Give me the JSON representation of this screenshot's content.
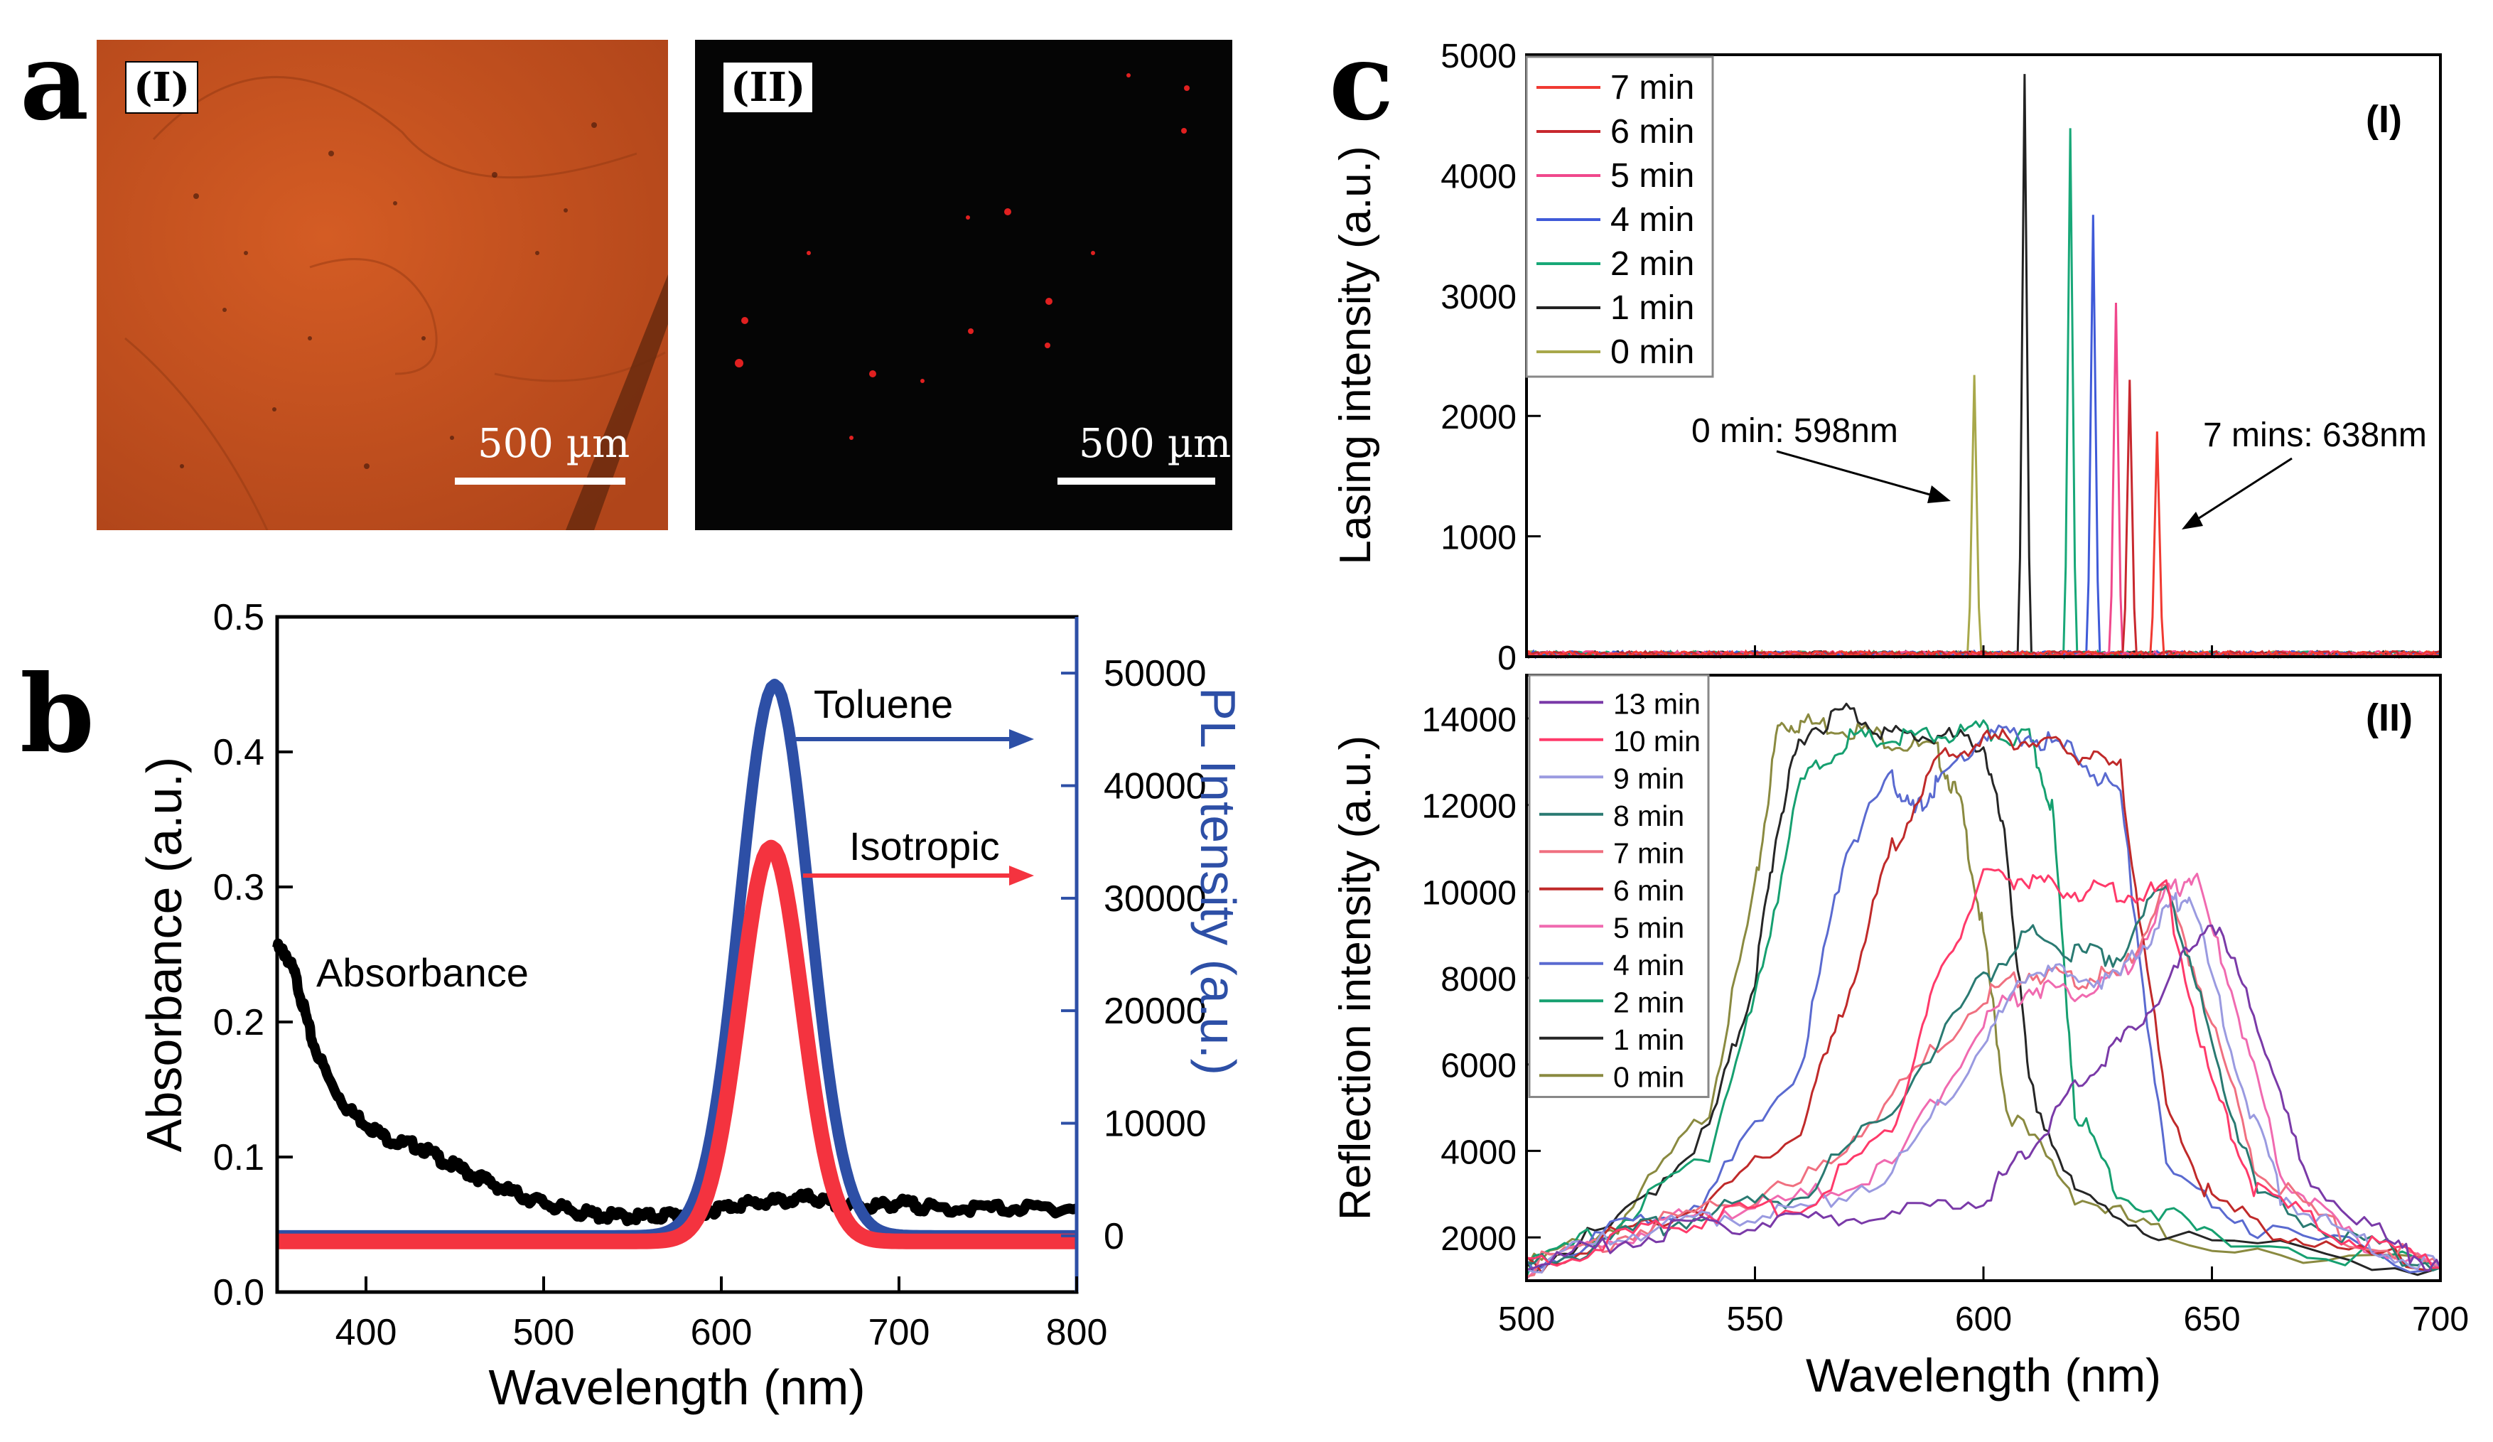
{
  "panels": {
    "a": {
      "letter": "a",
      "images": [
        {
          "label": "(I)",
          "scale_bar_text": "500 µm",
          "bg": "#c6501c"
        },
        {
          "label": "(II)",
          "scale_bar_text": "500 µm",
          "bg": "#050505"
        }
      ]
    },
    "b": {
      "letter": "b"
    },
    "c": {
      "letter": "c"
    }
  },
  "chart_data": [
    {
      "id": "b",
      "type": "line",
      "title": "",
      "xlabel": "Wavelength (nm)",
      "ylabel_left": "Absorbance (a.u.)",
      "ylabel_right": "PL Intensity (a.u.)",
      "xlim": [
        350,
        800
      ],
      "ylim_left": [
        0.0,
        0.5
      ],
      "ylim_right": [
        -5000,
        55000
      ],
      "x_ticks": [
        "400",
        "500",
        "600",
        "700",
        "800"
      ],
      "y_left_ticks": [
        "0.0",
        "0.1",
        "0.2",
        "0.3",
        "0.4",
        "0.5"
      ],
      "y_right_ticks": [
        "0",
        "10000",
        "20000",
        "30000",
        "40000",
        "50000"
      ],
      "series": [
        {
          "name": "Absorbance",
          "axis": "left",
          "color": "#000000",
          "x": [
            350,
            355,
            360,
            365,
            370,
            380,
            390,
            400,
            410,
            420,
            430,
            440,
            450,
            460,
            470,
            480,
            490,
            500,
            510,
            520,
            530,
            540,
            550,
            560,
            570,
            580,
            590,
            600,
            610,
            620,
            630,
            640,
            650,
            660,
            670,
            680,
            690,
            700,
            710,
            720,
            740,
            760,
            780,
            800
          ],
          "y": [
            0.255,
            0.25,
            0.235,
            0.21,
            0.185,
            0.155,
            0.135,
            0.125,
            0.115,
            0.11,
            0.108,
            0.1,
            0.093,
            0.087,
            0.081,
            0.075,
            0.07,
            0.066,
            0.062,
            0.059,
            0.057,
            0.056,
            0.056,
            0.056,
            0.057,
            0.058,
            0.06,
            0.062,
            0.065,
            0.066,
            0.067,
            0.068,
            0.07,
            0.066,
            0.064,
            0.063,
            0.064,
            0.066,
            0.064,
            0.062,
            0.062,
            0.062,
            0.062,
            0.062
          ]
        },
        {
          "name": "Toluene",
          "axis": "right",
          "color": "#2d4fa6",
          "peak_x": 630,
          "peak_y": 49000,
          "width": 19.5,
          "baseline": 0,
          "x": [
            350,
            400,
            450,
            500,
            550,
            570,
            580,
            590,
            600,
            605,
            610,
            615,
            620,
            625,
            630,
            635,
            640,
            645,
            650,
            655,
            660,
            665,
            670,
            680,
            690,
            700,
            750,
            800
          ],
          "y": [
            0,
            0,
            0,
            0,
            0,
            100,
            600,
            2500,
            8000,
            13000,
            20000,
            28000,
            36500,
            44000,
            49000,
            47500,
            42000,
            34000,
            25000,
            17000,
            10000,
            5500,
            2700,
            500,
            60,
            0,
            0,
            0
          ]
        },
        {
          "name": "Isotropic",
          "axis": "right",
          "color": "#f4333f",
          "peak_x": 628,
          "peak_y": 34500,
          "width": 17.5,
          "baseline": -500,
          "x": [
            350,
            400,
            450,
            500,
            550,
            580,
            590,
            600,
            605,
            610,
            615,
            620,
            625,
            628,
            635,
            640,
            645,
            650,
            655,
            660,
            665,
            670,
            680,
            700,
            750,
            800
          ],
          "y": [
            -500,
            -500,
            -500,
            -500,
            -500,
            0,
            1000,
            5500,
            9500,
            15000,
            21500,
            28500,
            33000,
            34500,
            31500,
            26000,
            19500,
            13000,
            7500,
            4000,
            1900,
            700,
            -300,
            -500,
            -500,
            -500
          ]
        }
      ],
      "annotations": [
        "Toluene",
        "Isotropic",
        "Absorbance"
      ]
    },
    {
      "id": "c-I",
      "type": "line",
      "panel_label": "(I)",
      "xlabel": "",
      "ylabel": "Lasing intensity (a.u.)",
      "xlim": [
        500,
        700
      ],
      "ylim": [
        0,
        5000
      ],
      "y_ticks": [
        "0",
        "1000",
        "2000",
        "3000",
        "4000",
        "5000"
      ],
      "series": [
        {
          "name": "7 min",
          "color": "#f03a32",
          "peak_x": 638,
          "peak_y": 1850
        },
        {
          "name": "6 min",
          "color": "#c8282e",
          "peak_x": 632,
          "peak_y": 2280
        },
        {
          "name": "5 min",
          "color": "#f0488c",
          "peak_x": 629,
          "peak_y": 2920
        },
        {
          "name": "4 min",
          "color": "#3f5ad8",
          "peak_x": 624,
          "peak_y": 3650
        },
        {
          "name": "2 min",
          "color": "#18a878",
          "peak_x": 619,
          "peak_y": 4370
        },
        {
          "name": "1 min",
          "color": "#222222",
          "peak_x": 609,
          "peak_y": 4820
        },
        {
          "name": "0 min",
          "color": "#a8a84a",
          "peak_x": 598,
          "peak_y": 2320
        }
      ],
      "annotations": [
        {
          "text": "0 min: 598nm"
        },
        {
          "text": "7 mins: 638nm"
        }
      ]
    },
    {
      "id": "c-II",
      "type": "line",
      "panel_label": "(II)",
      "xlabel": "Wavelength (nm)",
      "ylabel": "Reflection intensity (a.u.)",
      "xlim": [
        500,
        700
      ],
      "ylim": [
        1000,
        15000
      ],
      "x_ticks": [
        "500",
        "550",
        "600",
        "650",
        "700"
      ],
      "y_ticks": [
        "2000",
        "4000",
        "6000",
        "8000",
        "10000",
        "12000",
        "14000"
      ],
      "series": [
        {
          "name": "13 min",
          "color": "#7a3aa8",
          "x": [
            500,
            520,
            540,
            560,
            580,
            600,
            610,
            620,
            630,
            640,
            650,
            660,
            670,
            690,
            700
          ],
          "y": [
            1300,
            1900,
            2300,
            2400,
            2500,
            2900,
            4000,
            5500,
            6500,
            7800,
            9400,
            7000,
            3500,
            1800,
            1300
          ]
        },
        {
          "name": "10 min",
          "color": "#ff3a6a",
          "x": [
            500,
            520,
            540,
            560,
            580,
            590,
            600,
            610,
            620,
            630,
            640,
            650,
            660,
            680,
            700
          ],
          "y": [
            1300,
            2000,
            2500,
            2700,
            4500,
            8000,
            10300,
            10300,
            10000,
            10000,
            10000,
            5500,
            3000,
            2000,
            1300
          ]
        },
        {
          "name": "9 min",
          "color": "#9a9ae0",
          "x": [
            500,
            520,
            540,
            560,
            580,
            600,
            610,
            620,
            630,
            640,
            645,
            655,
            665,
            680,
            700
          ],
          "y": [
            1300,
            2000,
            2500,
            2600,
            3500,
            6500,
            8200,
            8000,
            8000,
            9500,
            10000,
            6000,
            3000,
            2000,
            1300
          ]
        },
        {
          "name": "8 min",
          "color": "#2a7a72",
          "x": [
            500,
            520,
            540,
            560,
            580,
            600,
            610,
            620,
            630,
            640,
            650,
            660,
            680,
            700
          ],
          "y": [
            1300,
            2000,
            2600,
            3000,
            5000,
            8000,
            9000,
            8600,
            8500,
            10300,
            6500,
            3000,
            2000,
            1300
          ]
        },
        {
          "name": "7 min",
          "color": "#f07080",
          "x": [
            500,
            520,
            540,
            560,
            580,
            600,
            610,
            620,
            630,
            640,
            650,
            660,
            680,
            700
          ],
          "y": [
            1300,
            2000,
            2700,
            3200,
            5200,
            7600,
            8100,
            8000,
            8000,
            10100,
            7000,
            3500,
            2000,
            1300
          ]
        },
        {
          "name": "6 min",
          "color": "#c02a2a",
          "x": [
            500,
            520,
            540,
            560,
            570,
            580,
            590,
            600,
            610,
            620,
            630,
            640,
            650,
            670,
            700
          ],
          "y": [
            1300,
            2100,
            2800,
            4500,
            7500,
            11000,
            13000,
            13500,
            13500,
            13200,
            12800,
            5000,
            2800,
            1900,
            1300
          ]
        },
        {
          "name": "5 min",
          "color": "#f06ab0",
          "x": [
            500,
            520,
            540,
            560,
            580,
            600,
            610,
            620,
            630,
            640,
            646,
            655,
            665,
            680,
            700
          ],
          "y": [
            1300,
            2000,
            2600,
            2900,
            3600,
            7000,
            7800,
            7700,
            8000,
            9900,
            10400,
            7500,
            3500,
            2000,
            1300
          ]
        },
        {
          "name": "4 min",
          "color": "#5a6ad0",
          "x": [
            500,
            520,
            540,
            560,
            570,
            580,
            585,
            590,
            600,
            610,
            620,
            630,
            640,
            660,
            700
          ],
          "y": [
            1300,
            2200,
            3000,
            6000,
            11000,
            12600,
            11800,
            12500,
            13600,
            13600,
            13200,
            12200,
            3500,
            2200,
            1300
          ]
        },
        {
          "name": "2 min",
          "color": "#16a070",
          "x": [
            500,
            520,
            540,
            550,
            560,
            570,
            580,
            590,
            600,
            610,
            615,
            620,
            630,
            650,
            700
          ],
          "y": [
            1300,
            2300,
            4000,
            7500,
            12500,
            13500,
            13500,
            13600,
            13700,
            13500,
            12000,
            5000,
            3000,
            2000,
            1300
          ]
        },
        {
          "name": "1 min",
          "color": "#262626",
          "x": [
            500,
            520,
            540,
            550,
            555,
            560,
            570,
            580,
            590,
            600,
            605,
            610,
            620,
            640,
            700
          ],
          "y": [
            1300,
            2300,
            4500,
            8000,
            11500,
            13600,
            14200,
            13600,
            13600,
            13400,
            11000,
            5500,
            3000,
            2000,
            1300
          ]
        },
        {
          "name": "0 min",
          "color": "#8a8a40",
          "x": [
            500,
            520,
            540,
            550,
            555,
            560,
            570,
            580,
            590,
            595,
            600,
            605,
            620,
            640,
            700
          ],
          "y": [
            1300,
            2300,
            5000,
            10000,
            13800,
            13900,
            13800,
            13500,
            13200,
            12000,
            9000,
            5000,
            3000,
            2000,
            1300
          ]
        }
      ]
    }
  ]
}
